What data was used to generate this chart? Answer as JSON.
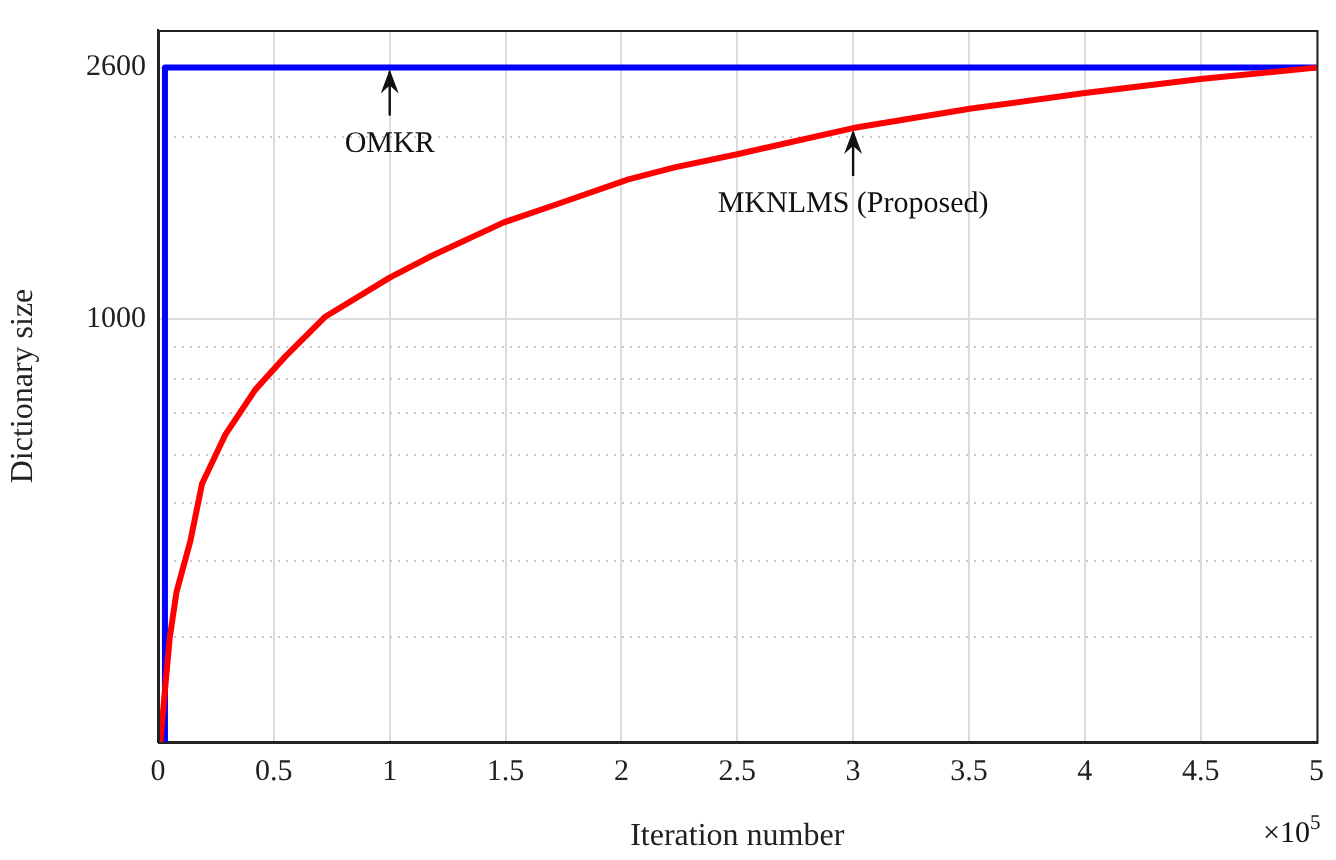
{
  "chart_data": {
    "type": "line",
    "xlabel": "Iteration number",
    "ylabel": "Dictionary size",
    "log": "y",
    "grid": true,
    "marker": "none",
    "line_style": "solid",
    "xlim": [
      0,
      5
    ],
    "xticks": [
      0,
      0.5,
      1,
      1.5,
      2,
      2.5,
      3,
      3.5,
      4,
      4.5,
      5
    ],
    "ylim": [
      200,
      3000
    ],
    "yticks": [
      {
        "value": 300,
        "label": null
      },
      {
        "value": 400,
        "label": null
      },
      {
        "value": 500,
        "label": null
      },
      {
        "value": 600,
        "label": null
      },
      {
        "value": 700,
        "label": null
      },
      {
        "value": 800,
        "label": null
      },
      {
        "value": 900,
        "label": null
      },
      1000,
      {
        "value": 2000,
        "label": null
      },
      2600
    ],
    "series": [
      {
        "color": "#0000ff",
        "x": [
          0.03,
          0.03,
          5
        ],
        "values": [
          200,
          2600,
          2600
        ]
      },
      {
        "color": "#ff0000",
        "x": [
          0.01,
          0.05,
          0.08,
          0.14,
          0.19,
          0.29,
          0.42,
          0.55,
          0.72,
          1.0,
          1.18,
          1.49,
          1.74,
          2.03,
          2.23,
          2.51,
          3.0,
          3.51,
          4.0,
          4.5,
          5.0
        ],
        "values": [
          200,
          296,
          354,
          430,
          534,
          643,
          764,
          867,
          1007,
          1170,
          1270,
          1442,
          1555,
          1700,
          1779,
          1874,
          2066,
          2225,
          2361,
          2489,
          2600
        ]
      }
    ],
    "annotations": [
      {
        "text": "OMKR",
        "x": 1,
        "y": 2600
      },
      {
        "text": "MKNLMS (Proposed)",
        "x": 3,
        "y": 2066
      },
      "×10$^{5}$"
    ]
  }
}
